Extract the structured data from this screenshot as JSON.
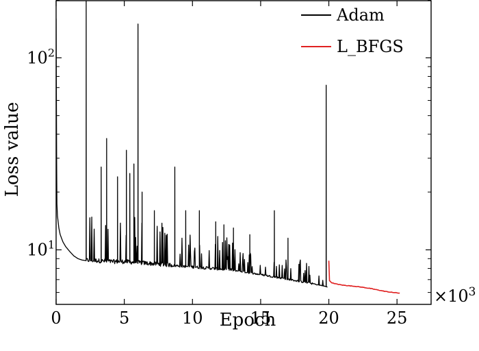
{
  "chart_data": {
    "type": "line",
    "xlabel": "Epoch",
    "ylabel": "Loss value",
    "x_multiplier_label": "×10",
    "x_multiplier_exponent": "3",
    "xlim": [
      0,
      27.5
    ],
    "ylim": [
      5.2,
      200
    ],
    "yscale": "log",
    "grid": false,
    "legend_position": "top-right",
    "x_ticks": [
      {
        "value": 0,
        "label": "0"
      },
      {
        "value": 5,
        "label": "5"
      },
      {
        "value": 10,
        "label": "10"
      },
      {
        "value": 15,
        "label": "15"
      },
      {
        "value": 20,
        "label": "20"
      },
      {
        "value": 25,
        "label": "25"
      }
    ],
    "y_major_ticks": [
      {
        "value": 10,
        "label": "10",
        "exponent": "1"
      },
      {
        "value": 100,
        "label": "10",
        "exponent": "2"
      }
    ],
    "y_minor_ticks": [
      6,
      7,
      8,
      9,
      20,
      30,
      40,
      50,
      60,
      70,
      80,
      90,
      200
    ],
    "series": [
      {
        "name": "Adam",
        "color": "#000000",
        "x": [
          0.0,
          0.05,
          0.1,
          0.2,
          0.3,
          0.5,
          0.7,
          1.0,
          1.3,
          1.6,
          1.9,
          2.15,
          2.2,
          2.25,
          3.0,
          4.0,
          5.0,
          6.0,
          7.0,
          8.0,
          9.0,
          10.0,
          11.0,
          12.0,
          13.0,
          14.0,
          15.0,
          16.0,
          17.0,
          18.0,
          19.0,
          19.5,
          19.9
        ],
        "values": [
          160,
          18,
          15,
          13,
          12,
          11,
          10.4,
          9.8,
          9.3,
          9.0,
          8.85,
          8.8,
          8.8,
          8.75,
          8.7,
          8.6,
          8.6,
          8.5,
          8.4,
          8.3,
          8.2,
          8.1,
          8.0,
          7.9,
          7.8,
          7.6,
          7.4,
          7.2,
          7.0,
          6.8,
          6.6,
          6.5,
          6.4
        ],
        "spikes": [
          {
            "x": 2.2,
            "y": 200
          },
          {
            "x": 3.3,
            "y": 27
          },
          {
            "x": 3.7,
            "y": 38
          },
          {
            "x": 4.5,
            "y": 24
          },
          {
            "x": 5.15,
            "y": 33
          },
          {
            "x": 5.4,
            "y": 25
          },
          {
            "x": 5.7,
            "y": 28
          },
          {
            "x": 6.0,
            "y": 150
          },
          {
            "x": 6.3,
            "y": 20
          },
          {
            "x": 7.2,
            "y": 16
          },
          {
            "x": 8.7,
            "y": 27
          },
          {
            "x": 9.5,
            "y": 16
          },
          {
            "x": 10.5,
            "y": 16
          },
          {
            "x": 11.7,
            "y": 14
          },
          {
            "x": 12.3,
            "y": 13.5
          },
          {
            "x": 13.0,
            "y": 13
          },
          {
            "x": 14.2,
            "y": 12
          },
          {
            "x": 16.0,
            "y": 16
          },
          {
            "x": 17.0,
            "y": 11.5
          },
          {
            "x": 19.8,
            "y": 72
          },
          {
            "x": 19.95,
            "y": 10.3
          }
        ]
      },
      {
        "name": "L_BFGS",
        "color": "#e02020",
        "x": [
          20.0,
          20.05,
          20.2,
          20.5,
          21.0,
          21.5,
          22.0,
          22.5,
          23.0,
          23.5,
          24.0,
          24.5,
          25.0,
          25.2
        ],
        "values": [
          8.8,
          6.9,
          6.75,
          6.65,
          6.55,
          6.5,
          6.45,
          6.38,
          6.3,
          6.2,
          6.1,
          6.02,
          5.97,
          5.95
        ]
      }
    ]
  }
}
